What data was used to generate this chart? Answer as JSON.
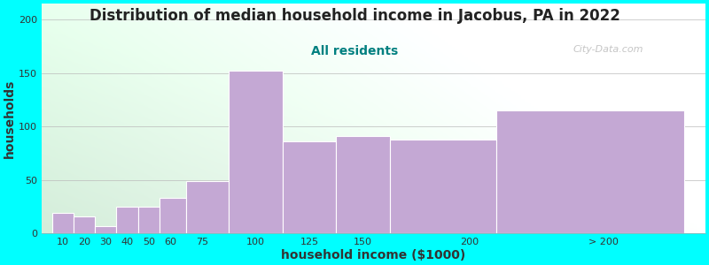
{
  "title": "Distribution of median household income in Jacobus, PA in 2022",
  "subtitle": "All residents",
  "xlabel": "household income ($1000)",
  "ylabel": "households",
  "background_color": "#00FFFF",
  "bar_color": "#C4A8D4",
  "bar_edge_color": "#ffffff",
  "bar_lefts": [
    5,
    15,
    25,
    35,
    45,
    55,
    67.5,
    87.5,
    112.5,
    137.5,
    162.5,
    212.5
  ],
  "bar_widths": [
    10,
    10,
    10,
    10,
    10,
    12.5,
    20,
    25,
    25,
    25,
    50,
    87.5
  ],
  "bar_heights": [
    19,
    16,
    7,
    25,
    25,
    33,
    49,
    152,
    86,
    91,
    88,
    115
  ],
  "tick_positions": [
    10,
    20,
    30,
    40,
    50,
    60,
    75,
    100,
    125,
    150,
    200,
    262.5
  ],
  "tick_labels": [
    "10",
    "20",
    "30",
    "40",
    "50",
    "60",
    "75",
    "100",
    "125",
    "150",
    "200",
    "> 200"
  ],
  "xlim": [
    0,
    310
  ],
  "ylim": [
    0,
    215
  ],
  "yticks": [
    0,
    50,
    100,
    150,
    200
  ],
  "watermark": "City-Data.com",
  "title_fontsize": 12,
  "subtitle_fontsize": 10,
  "axis_label_fontsize": 10,
  "subtitle_color": "#008080",
  "title_color": "#222222",
  "axis_label_color": "#333333"
}
